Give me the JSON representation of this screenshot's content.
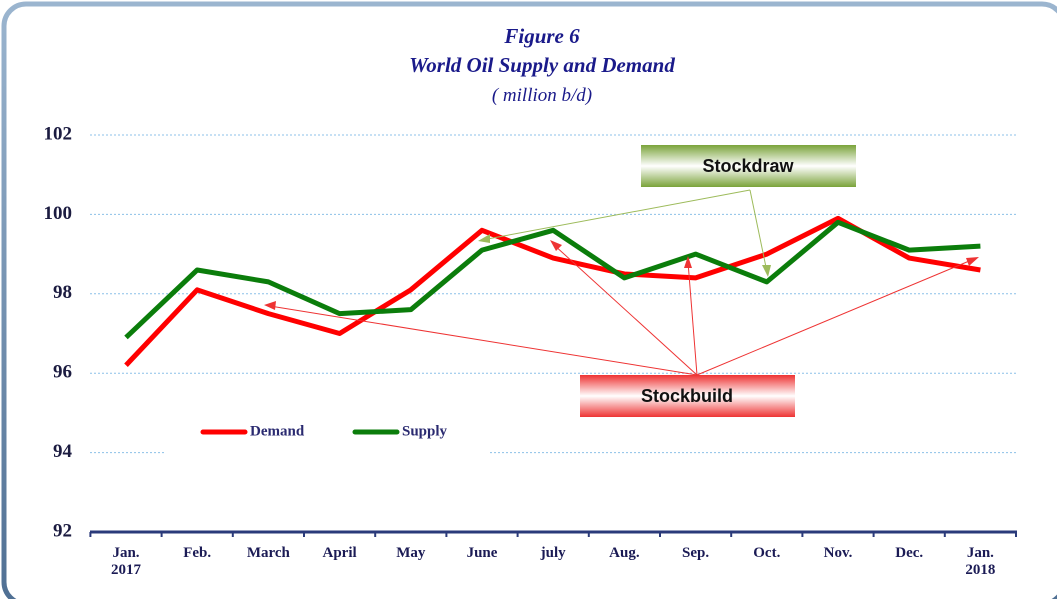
{
  "chart_data": {
    "type": "line",
    "title": "Figure 6",
    "subtitle": "World  Oil Supply and Demand",
    "units": "( million  b/d)",
    "categories": [
      "Jan. 2017",
      "Feb.",
      "March",
      "April",
      "May",
      "June",
      "july",
      "Aug.",
      "Sep.",
      "Oct.",
      "Nov.",
      "Dec.",
      "Jan. 2018"
    ],
    "series": [
      {
        "name": "Demand",
        "color": "#ff0000",
        "values": [
          96.2,
          98.1,
          97.5,
          97.0,
          98.1,
          99.6,
          98.9,
          98.5,
          98.4,
          99.0,
          99.9,
          98.9,
          98.6
        ]
      },
      {
        "name": "Supply",
        "color": "#0b7d0b",
        "values": [
          96.9,
          98.6,
          98.3,
          97.5,
          97.6,
          99.1,
          99.6,
          98.4,
          99.0,
          98.3,
          99.8,
          99.1,
          99.2
        ]
      }
    ],
    "ylim": [
      92,
      102
    ],
    "yticks": [
      92,
      94,
      96,
      98,
      100,
      102
    ],
    "grid": true,
    "annotations": [
      "Stockdraw",
      "Stockbuild"
    ]
  }
}
